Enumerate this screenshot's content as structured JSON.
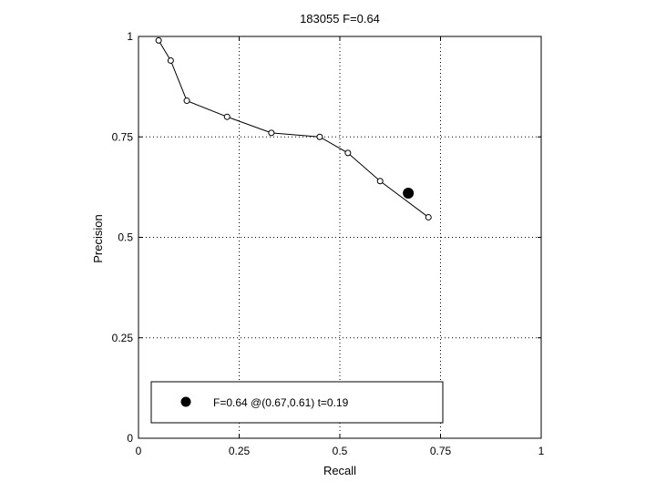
{
  "chart_data": {
    "type": "line",
    "title": "183055 F=0.64",
    "xlabel": "Recall",
    "ylabel": "Precision",
    "xlim": [
      0,
      1
    ],
    "ylim": [
      0,
      1
    ],
    "xticks": [
      0,
      0.25,
      0.5,
      0.75,
      1
    ],
    "yticks": [
      0,
      0.25,
      0.5,
      0.75,
      1
    ],
    "xtick_labels": [
      "0",
      "0.25",
      "0.5",
      "0.75",
      "1"
    ],
    "ytick_labels": [
      "0",
      "0.25",
      "0.5",
      "0.75",
      "1"
    ],
    "grid": true,
    "series": [
      {
        "marker": "open-circle",
        "color": "#000000",
        "x": [
          0.05,
          0.08,
          0.12,
          0.22,
          0.33,
          0.45,
          0.52,
          0.6,
          0.72
        ],
        "y": [
          0.99,
          0.94,
          0.84,
          0.8,
          0.76,
          0.75,
          0.71,
          0.64,
          0.55
        ]
      }
    ],
    "highlight_point": {
      "x": 0.67,
      "y": 0.61,
      "marker": "filled-circle",
      "color": "#000000"
    },
    "legend": {
      "placement": "bottom-left",
      "text": "F=0.64 @(0.67,0.61) t=0.19"
    }
  }
}
